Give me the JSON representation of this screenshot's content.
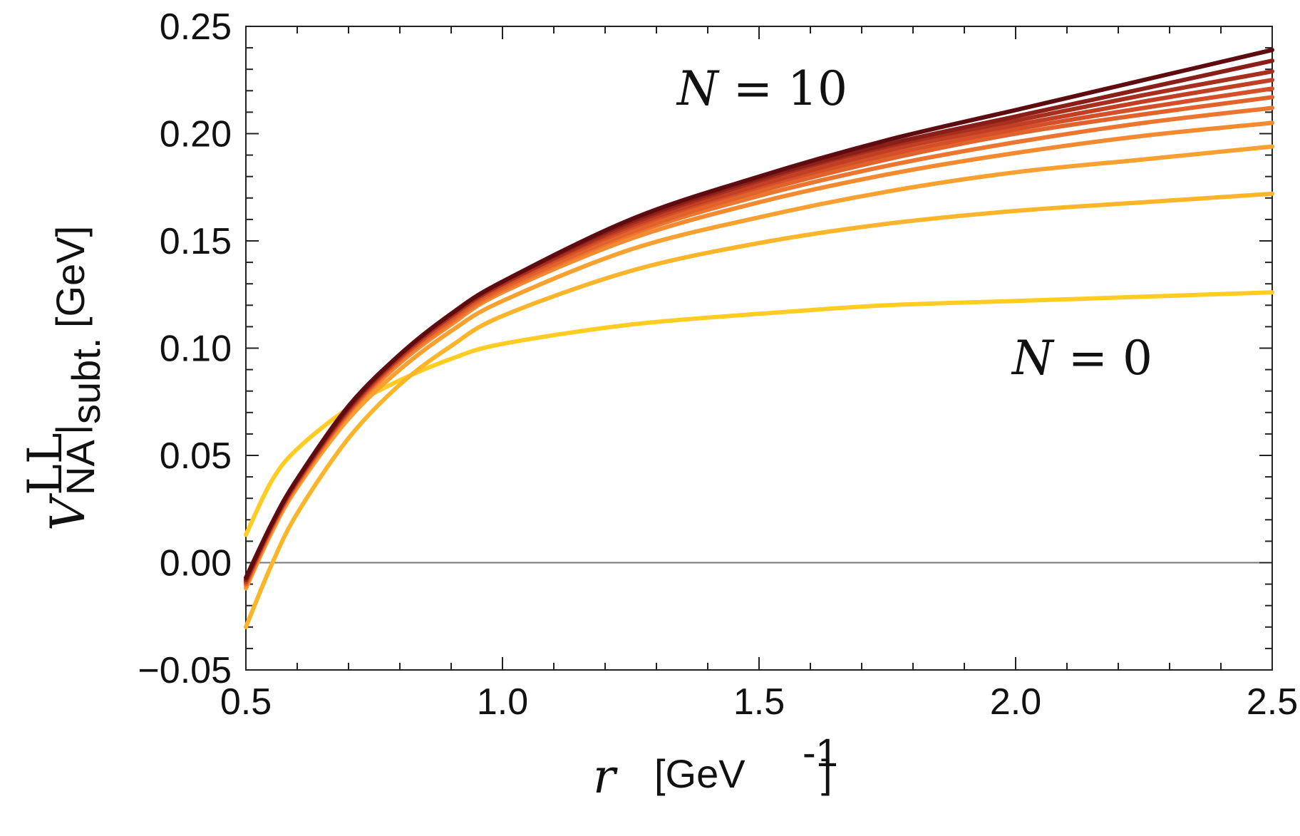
{
  "chart_data": {
    "type": "line",
    "title": "",
    "xlabel": {
      "var": "r",
      "unit_open": "[GeV",
      "unit_exp": "-1",
      "unit_close": "]"
    },
    "ylabel": {
      "var": "V",
      "sup": "LL",
      "sub": "NA",
      "bar": "|",
      "subt": "subt.",
      "unit": "[GeV]"
    },
    "xlim": [
      0.5,
      2.5
    ],
    "ylim": [
      -0.05,
      0.25
    ],
    "xticks": [
      "0.5",
      "1.0",
      "1.5",
      "2.0",
      "2.5"
    ],
    "yticks": [
      "−0.05",
      "0.00",
      "0.05",
      "0.10",
      "0.15",
      "0.20",
      "0.25"
    ],
    "reference_line": 0.0,
    "grid": false,
    "legend": "none",
    "annotations": [
      {
        "text_var": "N",
        "text_eq": " = ",
        "text_num": "10"
      },
      {
        "text_var": "N",
        "text_eq": " = ",
        "text_num": "0"
      }
    ],
    "x": [
      0.5,
      0.55,
      0.6,
      0.7,
      0.8,
      0.9,
      1.0,
      1.25,
      1.5,
      1.75,
      2.0,
      2.25,
      2.5
    ],
    "series": [
      {
        "n": 0,
        "color": "#FFCC22",
        "values": [
          0.013,
          0.038,
          0.053,
          0.072,
          0.085,
          0.095,
          0.102,
          0.111,
          0.116,
          0.12,
          0.122,
          0.124,
          0.126
        ]
      },
      {
        "n": 1,
        "color": "#FBB52A",
        "values": [
          -0.03,
          -0.001,
          0.023,
          0.058,
          0.083,
          0.101,
          0.115,
          0.136,
          0.149,
          0.158,
          0.164,
          0.168,
          0.172
        ]
      },
      {
        "n": 2,
        "color": "#F8A030",
        "values": [
          -0.012,
          0.014,
          0.035,
          0.067,
          0.09,
          0.108,
          0.122,
          0.146,
          0.161,
          0.173,
          0.182,
          0.188,
          0.194
        ]
      },
      {
        "n": 3,
        "color": "#F38A30",
        "values": [
          -0.011,
          0.015,
          0.036,
          0.069,
          0.093,
          0.111,
          0.126,
          0.151,
          0.168,
          0.181,
          0.191,
          0.199,
          0.205
        ]
      },
      {
        "n": 4,
        "color": "#EC7530",
        "values": [
          -0.01,
          0.016,
          0.037,
          0.07,
          0.094,
          0.112,
          0.127,
          0.153,
          0.171,
          0.185,
          0.196,
          0.205,
          0.212
        ]
      },
      {
        "n": 5,
        "color": "#E2622C",
        "values": [
          -0.01,
          0.016,
          0.037,
          0.07,
          0.095,
          0.113,
          0.128,
          0.154,
          0.173,
          0.188,
          0.2,
          0.209,
          0.217
        ]
      },
      {
        "n": 6,
        "color": "#D55028",
        "values": [
          -0.009,
          0.017,
          0.038,
          0.071,
          0.095,
          0.114,
          0.129,
          0.156,
          0.175,
          0.19,
          0.202,
          0.212,
          0.221
        ]
      },
      {
        "n": 7,
        "color": "#C23F24",
        "values": [
          -0.009,
          0.017,
          0.038,
          0.071,
          0.096,
          0.115,
          0.13,
          0.157,
          0.176,
          0.192,
          0.204,
          0.215,
          0.225
        ]
      },
      {
        "n": 8,
        "color": "#A82E1E",
        "values": [
          -0.008,
          0.017,
          0.038,
          0.072,
          0.096,
          0.115,
          0.13,
          0.158,
          0.178,
          0.194,
          0.206,
          0.218,
          0.229
        ]
      },
      {
        "n": 9,
        "color": "#8A1E18",
        "values": [
          -0.008,
          0.018,
          0.039,
          0.072,
          0.097,
          0.116,
          0.131,
          0.159,
          0.179,
          0.195,
          0.208,
          0.221,
          0.234
        ]
      },
      {
        "n": 10,
        "color": "#5E0C10",
        "values": [
          -0.007,
          0.018,
          0.039,
          0.073,
          0.097,
          0.116,
          0.131,
          0.16,
          0.18,
          0.197,
          0.211,
          0.225,
          0.239
        ]
      }
    ]
  }
}
